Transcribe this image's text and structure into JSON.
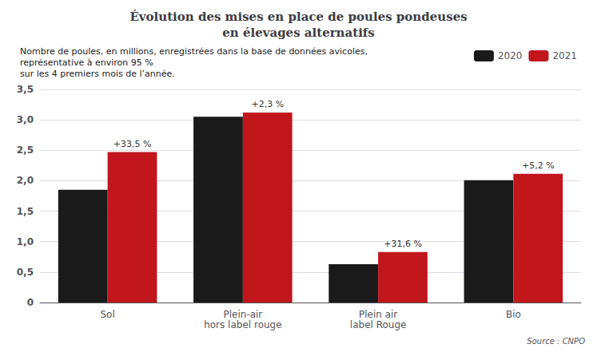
{
  "chart_data": {
    "type": "bar",
    "title": "Évolution des mises en place de poules pondeuses\nen élevages alternatifs",
    "subtitle": "Nombre de poules, en millions, enregistrées dans la base de données avicoles,\nreprésentative à environ 95 %\nsur les 4 premiers mois de l’année.",
    "source": "Source : CNPO",
    "categories": [
      "Sol",
      "Plein-air\nhors label rouge",
      "Plein air\nlabel Rouge",
      "Bio"
    ],
    "series": [
      {
        "name": "2020",
        "color": "#1a1a1a",
        "values": [
          1.85,
          3.05,
          0.63,
          2.01
        ]
      },
      {
        "name": "2021",
        "color": "#c0161c",
        "values": [
          2.47,
          3.12,
          0.83,
          2.115
        ]
      }
    ],
    "annotations": [
      "+33,5 %",
      "+2,3 %",
      "+31,6 %",
      "+5,2 %"
    ],
    "ylim": [
      0,
      3.5
    ],
    "yticks": [
      0,
      {
        "value": 0.5,
        "label": "0,5"
      },
      {
        "value": 1.0,
        "label": "1,0"
      },
      {
        "value": 1.5,
        "label": "1,5"
      },
      {
        "value": 2.0,
        "label": "2,0"
      },
      {
        "value": 2.5,
        "label": "2,5"
      },
      {
        "value": 3.0,
        "label": "3,0"
      },
      {
        "value": 3.5,
        "label": "3,5"
      }
    ],
    "grid": true,
    "legend": "upper right"
  }
}
